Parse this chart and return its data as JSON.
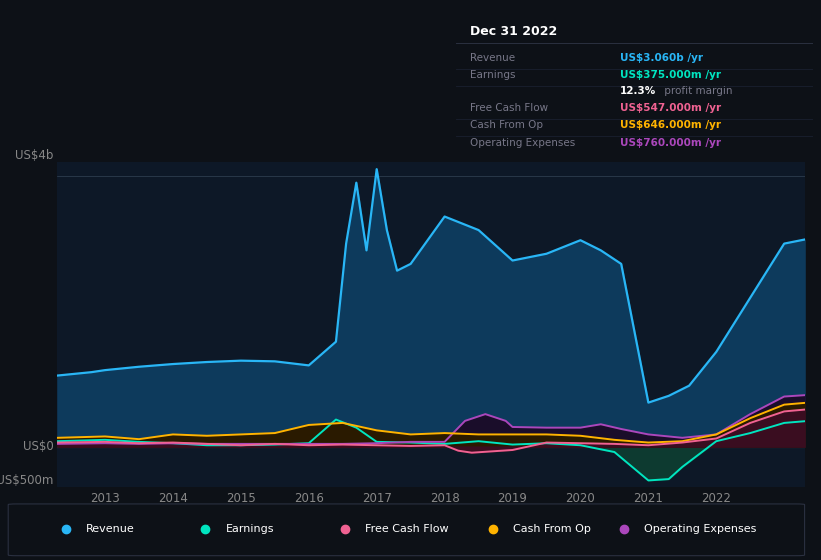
{
  "background_color": "#0d1117",
  "plot_bg_color": "#0d1827",
  "revenue_color": "#29b6f6",
  "earnings_color": "#00e5c0",
  "fcf_color": "#f06292",
  "cashfromop_color": "#ffb300",
  "opex_color": "#ab47bc",
  "revenue_fill": "#0d3a5c",
  "earnings_fill": "#0d3a30",
  "fcf_fill": "#3a0d20",
  "cashfromop_fill": "#2a1a00",
  "opex_fill": "#1a0d2a",
  "ylim": [
    -600,
    4200
  ],
  "xlim": [
    2012.3,
    2023.3
  ],
  "xticks": [
    2013,
    2014,
    2015,
    2016,
    2017,
    2018,
    2019,
    2020,
    2021,
    2022
  ],
  "revenue_x": [
    2012.3,
    2012.8,
    2013.0,
    2013.5,
    2014.0,
    2014.5,
    2015.0,
    2015.5,
    2016.0,
    2016.4,
    2016.55,
    2016.7,
    2016.85,
    2017.0,
    2017.15,
    2017.3,
    2017.5,
    2018.0,
    2018.5,
    2019.0,
    2019.5,
    2020.0,
    2020.3,
    2020.6,
    2021.0,
    2021.3,
    2021.6,
    2022.0,
    2022.5,
    2023.0,
    2023.3
  ],
  "revenue_y": [
    1050,
    1100,
    1130,
    1180,
    1220,
    1250,
    1270,
    1260,
    1200,
    1550,
    3000,
    3900,
    2900,
    4100,
    3200,
    2600,
    2700,
    3400,
    3200,
    2750,
    2850,
    3050,
    2900,
    2700,
    650,
    750,
    900,
    1400,
    2200,
    3000,
    3060
  ],
  "earnings_x": [
    2012.3,
    2013.0,
    2013.5,
    2014.0,
    2014.5,
    2015.0,
    2015.5,
    2016.0,
    2016.4,
    2016.7,
    2017.0,
    2017.5,
    2018.0,
    2018.5,
    2019.0,
    2019.5,
    2020.0,
    2020.5,
    2021.0,
    2021.3,
    2021.5,
    2022.0,
    2022.5,
    2023.0,
    2023.3
  ],
  "earnings_y": [
    80,
    100,
    70,
    50,
    20,
    20,
    30,
    50,
    400,
    280,
    70,
    60,
    40,
    80,
    30,
    50,
    20,
    -80,
    -500,
    -480,
    -300,
    80,
    200,
    350,
    375
  ],
  "fcf_x": [
    2012.3,
    2013.0,
    2013.5,
    2014.0,
    2014.5,
    2015.0,
    2015.5,
    2016.0,
    2016.5,
    2017.0,
    2017.5,
    2018.0,
    2018.2,
    2018.4,
    2018.7,
    2019.0,
    2019.5,
    2020.0,
    2020.5,
    2021.0,
    2021.5,
    2022.0,
    2022.5,
    2023.0,
    2023.3
  ],
  "fcf_y": [
    60,
    70,
    50,
    60,
    40,
    20,
    40,
    20,
    30,
    20,
    10,
    20,
    -60,
    -90,
    -70,
    -50,
    60,
    50,
    40,
    20,
    60,
    120,
    350,
    520,
    547
  ],
  "cashfromop_x": [
    2012.3,
    2013.0,
    2013.5,
    2014.0,
    2014.5,
    2015.0,
    2015.5,
    2016.0,
    2016.5,
    2017.0,
    2017.5,
    2018.0,
    2018.5,
    2019.0,
    2019.5,
    2020.0,
    2020.5,
    2021.0,
    2021.5,
    2022.0,
    2022.5,
    2023.0,
    2023.3
  ],
  "cashfromop_y": [
    130,
    150,
    110,
    180,
    160,
    180,
    200,
    320,
    350,
    240,
    180,
    200,
    180,
    180,
    180,
    160,
    100,
    60,
    80,
    180,
    420,
    620,
    646
  ],
  "opex_x": [
    2012.3,
    2013.0,
    2013.5,
    2014.0,
    2014.5,
    2015.0,
    2015.5,
    2016.0,
    2016.5,
    2017.0,
    2017.5,
    2018.0,
    2018.3,
    2018.6,
    2018.9,
    2019.0,
    2019.5,
    2020.0,
    2020.3,
    2020.6,
    2021.0,
    2021.5,
    2022.0,
    2022.5,
    2023.0,
    2023.3
  ],
  "opex_y": [
    40,
    50,
    40,
    50,
    40,
    40,
    40,
    40,
    40,
    50,
    70,
    70,
    380,
    480,
    380,
    290,
    280,
    280,
    330,
    260,
    180,
    130,
    180,
    480,
    740,
    760
  ],
  "info_title": "Dec 31 2022",
  "info_rows": [
    {
      "label": "Revenue",
      "value": "US$3.060b /yr",
      "color": "#29b6f6",
      "indent": false
    },
    {
      "label": "Earnings",
      "value": "US$375.000m /yr",
      "color": "#00e5c0",
      "indent": false
    },
    {
      "label": "",
      "value": "12.3% profit margin",
      "color": "#cccccc",
      "indent": true
    },
    {
      "label": "Free Cash Flow",
      "value": "US$547.000m /yr",
      "color": "#f06292",
      "indent": false
    },
    {
      "label": "Cash From Op",
      "value": "US$646.000m /yr",
      "color": "#ffb300",
      "indent": false
    },
    {
      "label": "Operating Expenses",
      "value": "US$760.000m /yr",
      "color": "#ab47bc",
      "indent": false
    }
  ],
  "legend_items": [
    {
      "label": "Revenue",
      "color": "#29b6f6"
    },
    {
      "label": "Earnings",
      "color": "#00e5c0"
    },
    {
      "label": "Free Cash Flow",
      "color": "#f06292"
    },
    {
      "label": "Cash From Op",
      "color": "#ffb300"
    },
    {
      "label": "Operating Expenses",
      "color": "#ab47bc"
    }
  ]
}
